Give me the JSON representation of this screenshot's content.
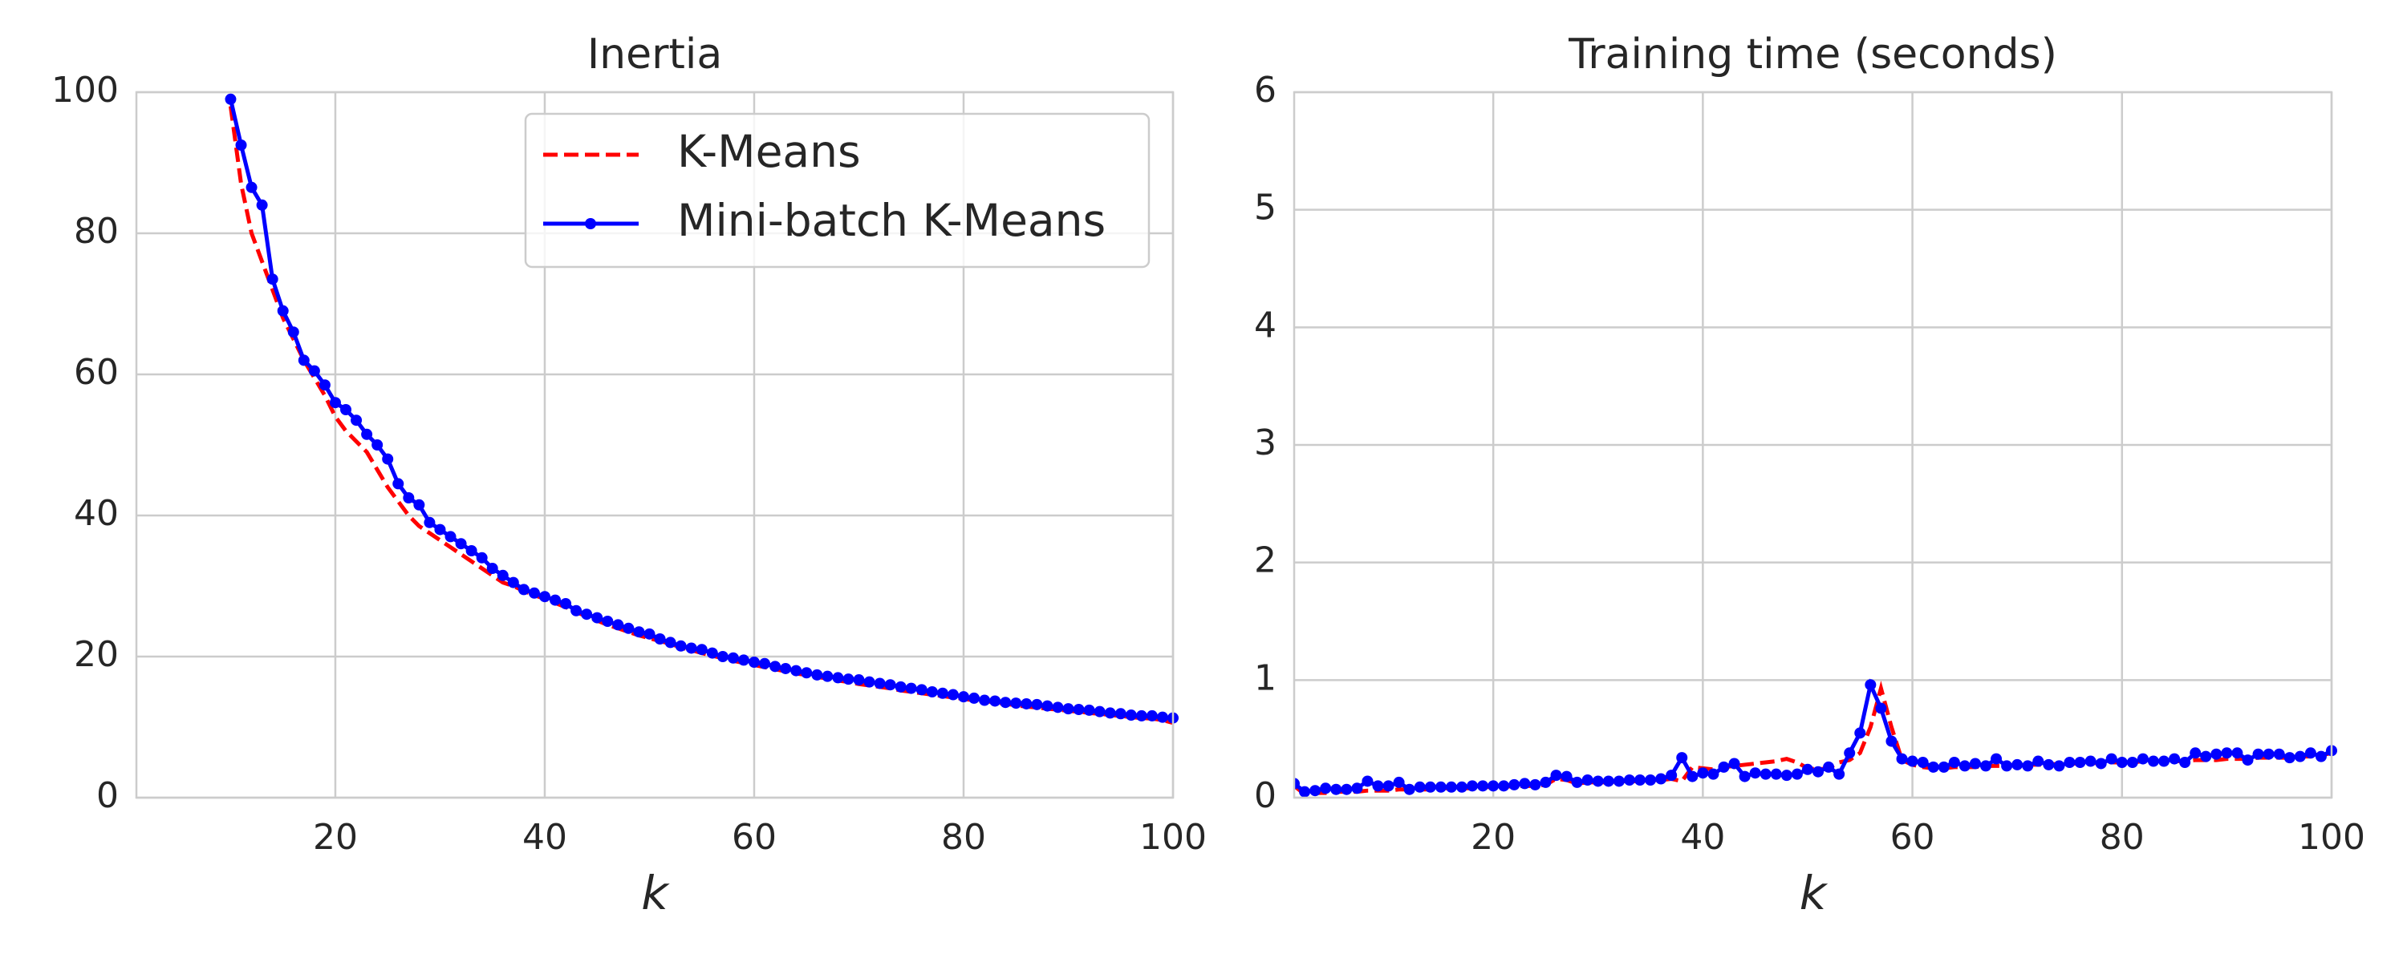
{
  "chart_data": [
    {
      "type": "line",
      "title": "Inertia",
      "xlabel": "k",
      "x": [
        10,
        11,
        12,
        13,
        14,
        15,
        16,
        17,
        18,
        19,
        20,
        21,
        22,
        23,
        24,
        25,
        26,
        27,
        28,
        29,
        30,
        31,
        32,
        33,
        34,
        35,
        36,
        37,
        38,
        39,
        40,
        41,
        42,
        43,
        44,
        45,
        46,
        47,
        48,
        49,
        50,
        51,
        52,
        53,
        54,
        55,
        56,
        57,
        58,
        59,
        60,
        61,
        62,
        63,
        64,
        65,
        66,
        67,
        68,
        69,
        70,
        71,
        72,
        73,
        74,
        75,
        76,
        77,
        78,
        79,
        80,
        81,
        82,
        83,
        84,
        85,
        86,
        87,
        88,
        89,
        90,
        91,
        92,
        93,
        94,
        95,
        96,
        97,
        98,
        99,
        100
      ],
      "series": [
        {
          "name": "K-Means",
          "color": "#ff0000",
          "linestyle": "dashed",
          "marker": "none",
          "values": [
            98,
            87,
            80,
            76,
            72,
            68,
            65,
            62,
            59.5,
            57,
            54,
            52,
            50.5,
            49,
            46.5,
            44,
            42,
            40,
            38.5,
            37.5,
            36.5,
            35.5,
            34.5,
            33.5,
            32.5,
            31.5,
            30.5,
            30,
            29.3,
            28.7,
            28.2,
            27.6,
            27,
            26.3,
            25.7,
            25.1,
            24.5,
            24,
            23.5,
            23,
            22.6,
            22.2,
            21.8,
            21.3,
            20.9,
            20.5,
            20.1,
            19.8,
            19.4,
            19.1,
            18.8,
            18.5,
            18.2,
            17.9,
            17.6,
            17.4,
            17.1,
            16.9,
            16.6,
            16.4,
            16.1,
            15.9,
            15.7,
            15.5,
            15.2,
            15,
            14.8,
            14.6,
            14.4,
            14.2,
            14,
            13.8,
            13.7,
            13.5,
            13.3,
            13.1,
            12.9,
            12.8,
            12.6,
            12.5,
            12.3,
            12.2,
            12,
            11.9,
            11.7,
            11.6,
            11.4,
            11.3,
            11.2,
            11,
            10.6
          ]
        },
        {
          "name": "Mini-batch K-Means",
          "color": "#0000ff",
          "linestyle": "solid",
          "marker": "dot",
          "values": [
            99,
            92.5,
            86.5,
            84,
            73.5,
            69,
            66,
            62,
            60.5,
            58.5,
            56,
            55,
            53.5,
            51.5,
            50,
            48,
            44.5,
            42.5,
            41.5,
            39,
            38,
            37,
            36,
            35,
            34,
            32.5,
            31.5,
            30.5,
            29.5,
            29,
            28.5,
            28,
            27.5,
            26.5,
            26,
            25.5,
            25,
            24.5,
            24,
            23.5,
            23.2,
            22.5,
            22,
            21.5,
            21.2,
            21,
            20.5,
            20,
            19.8,
            19.5,
            19.2,
            19,
            18.6,
            18.3,
            18,
            17.7,
            17.4,
            17.2,
            17,
            16.8,
            16.7,
            16.4,
            16.2,
            16,
            15.7,
            15.5,
            15.3,
            15,
            14.8,
            14.6,
            14.3,
            14.1,
            13.8,
            13.7,
            13.5,
            13.4,
            13.3,
            13.2,
            13,
            12.8,
            12.6,
            12.5,
            12.4,
            12.2,
            12,
            11.9,
            11.7,
            11.6,
            11.6,
            11.4,
            11.3
          ]
        }
      ],
      "xlim": [
        1,
        100
      ],
      "xticks": [
        20,
        40,
        60,
        80,
        100
      ],
      "ylim": [
        0,
        100
      ],
      "yticks": [
        0,
        20,
        40,
        60,
        80,
        100
      ],
      "grid": true,
      "legend": "upper right"
    },
    {
      "type": "line",
      "title": "Training time (seconds)",
      "xlabel": "k",
      "x": [
        1,
        2,
        3,
        4,
        5,
        6,
        7,
        8,
        9,
        10,
        11,
        12,
        13,
        14,
        15,
        16,
        17,
        18,
        19,
        20,
        21,
        22,
        23,
        24,
        25,
        26,
        27,
        28,
        29,
        30,
        31,
        32,
        33,
        34,
        35,
        36,
        37,
        38,
        39,
        40,
        41,
        42,
        43,
        44,
        45,
        46,
        47,
        48,
        49,
        50,
        51,
        52,
        53,
        54,
        55,
        56,
        57,
        58,
        59,
        60,
        61,
        62,
        63,
        64,
        65,
        66,
        67,
        68,
        69,
        70,
        71,
        72,
        73,
        74,
        75,
        76,
        77,
        78,
        79,
        80,
        81,
        82,
        83,
        84,
        85,
        86,
        87,
        88,
        89,
        90,
        91,
        92,
        93,
        94,
        95,
        96,
        97,
        98,
        99,
        100
      ],
      "series": [
        {
          "name": "K-Means",
          "color": "#ff0000",
          "linestyle": "dashed",
          "marker": "none",
          "values": [
            0.1,
            0.03,
            0.04,
            0.04,
            0.05,
            0.05,
            0.05,
            0.06,
            0.06,
            0.06,
            0.07,
            0.07,
            0.07,
            0.07,
            0.08,
            0.08,
            0.08,
            0.08,
            0.09,
            0.09,
            0.09,
            0.1,
            0.1,
            0.1,
            0.11,
            0.16,
            0.15,
            0.12,
            0.13,
            0.13,
            0.13,
            0.14,
            0.14,
            0.14,
            0.15,
            0.15,
            0.16,
            0.14,
            0.26,
            0.25,
            0.24,
            0.26,
            0.27,
            0.28,
            0.29,
            0.3,
            0.31,
            0.33,
            0.3,
            0.25,
            0.24,
            0.25,
            0.3,
            0.32,
            0.38,
            0.6,
            0.93,
            0.6,
            0.32,
            0.28,
            0.26,
            0.25,
            0.25,
            0.26,
            0.26,
            0.26,
            0.27,
            0.27,
            0.27,
            0.28,
            0.28,
            0.28,
            0.28,
            0.29,
            0.29,
            0.29,
            0.29,
            0.3,
            0.3,
            0.3,
            0.3,
            0.31,
            0.31,
            0.31,
            0.31,
            0.31,
            0.32,
            0.32,
            0.32,
            0.33,
            0.33,
            0.33,
            0.34,
            0.34,
            0.34,
            0.34,
            0.35,
            0.35,
            0.36,
            0.38
          ]
        },
        {
          "name": "Mini-batch K-Means",
          "color": "#0000ff",
          "linestyle": "solid",
          "marker": "dot",
          "values": [
            0.12,
            0.05,
            0.06,
            0.08,
            0.07,
            0.07,
            0.08,
            0.14,
            0.1,
            0.1,
            0.13,
            0.07,
            0.09,
            0.09,
            0.09,
            0.09,
            0.09,
            0.1,
            0.1,
            0.1,
            0.1,
            0.11,
            0.12,
            0.11,
            0.13,
            0.19,
            0.18,
            0.13,
            0.15,
            0.14,
            0.14,
            0.14,
            0.15,
            0.15,
            0.15,
            0.16,
            0.19,
            0.34,
            0.18,
            0.21,
            0.2,
            0.26,
            0.29,
            0.18,
            0.21,
            0.2,
            0.2,
            0.19,
            0.2,
            0.24,
            0.22,
            0.26,
            0.2,
            0.38,
            0.55,
            0.96,
            0.76,
            0.48,
            0.33,
            0.31,
            0.3,
            0.26,
            0.26,
            0.3,
            0.27,
            0.29,
            0.27,
            0.33,
            0.27,
            0.28,
            0.27,
            0.31,
            0.28,
            0.27,
            0.3,
            0.3,
            0.31,
            0.29,
            0.33,
            0.3,
            0.3,
            0.33,
            0.31,
            0.31,
            0.33,
            0.3,
            0.38,
            0.35,
            0.37,
            0.38,
            0.38,
            0.32,
            0.37,
            0.37,
            0.37,
            0.34,
            0.35,
            0.38,
            0.35,
            0.4
          ]
        }
      ],
      "xlim": [
        1,
        100
      ],
      "xticks": [
        20,
        40,
        60,
        80,
        100
      ],
      "ylim": [
        0,
        6
      ],
      "yticks": [
        0,
        1,
        2,
        3,
        4,
        5,
        6
      ],
      "grid": true
    }
  ]
}
